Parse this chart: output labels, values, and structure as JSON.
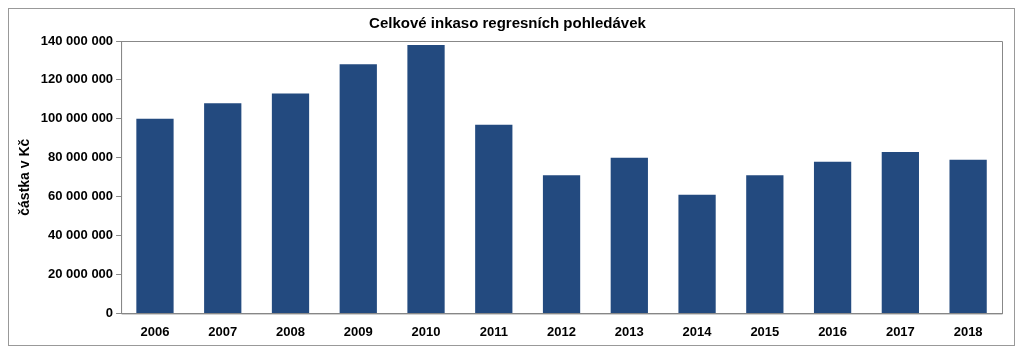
{
  "chart_data": {
    "type": "bar",
    "title": "Celkové inkaso regresních pohledávek",
    "ylabel": "částka v Kč",
    "categories": [
      "2006",
      "2007",
      "2008",
      "2009",
      "2010",
      "2011",
      "2012",
      "2013",
      "2014",
      "2015",
      "2016",
      "2017",
      "2018"
    ],
    "values": [
      100000000,
      108000000,
      113000000,
      128000000,
      138000000,
      97000000,
      71000000,
      80000000,
      61000000,
      71000000,
      78000000,
      83000000,
      79000000
    ],
    "color": "#234a7f",
    "ylim": [
      0,
      140000000
    ],
    "yticks": [
      {
        "value": 0,
        "label": "0"
      },
      {
        "value": 20000000,
        "label": "20 000 000"
      },
      {
        "value": 40000000,
        "label": "40 000 000"
      },
      {
        "value": 60000000,
        "label": "60 000 000"
      },
      {
        "value": 80000000,
        "label": "80 000 000"
      },
      {
        "value": 100000000,
        "label": "100 000 000"
      },
      {
        "value": 120000000,
        "label": "120 000 000"
      },
      {
        "value": 140000000,
        "label": "140 000 000"
      }
    ],
    "grid": false,
    "legend": false
  }
}
